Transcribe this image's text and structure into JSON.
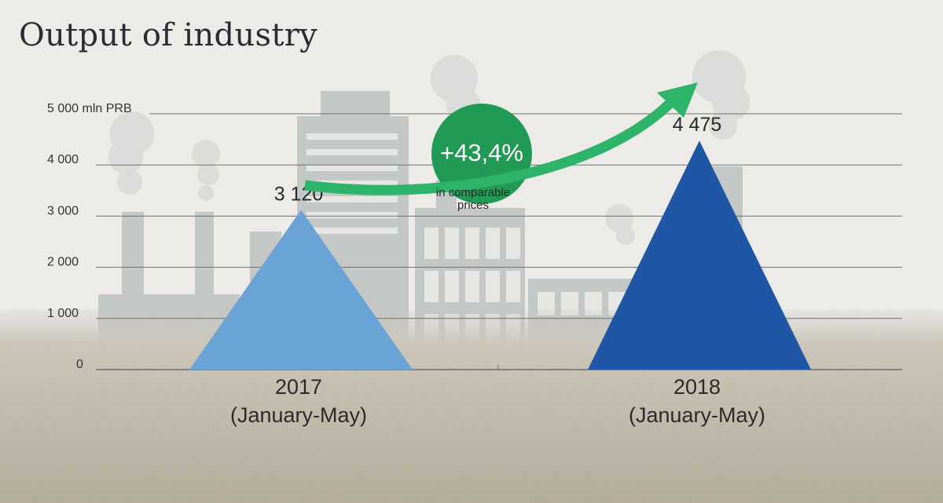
{
  "title": "Output of industry",
  "chart_data": {
    "type": "bar",
    "mark_shape": "triangle",
    "categories": [
      "2017\n(January-May)",
      "2018\n(January-May)"
    ],
    "values": [
      3120,
      4475
    ],
    "value_labels": [
      "3 120",
      "4 475"
    ],
    "y_ticks": [
      {
        "value": 0,
        "label": "0"
      },
      {
        "value": 1000,
        "label": "1 000"
      },
      {
        "value": 2000,
        "label": "2 000"
      },
      {
        "value": 3000,
        "label": "3 000"
      },
      {
        "value": 4000,
        "label": "4 000"
      },
      {
        "value": 5000,
        "label": "5 000 mln PRB"
      }
    ],
    "ylim": [
      0,
      5000
    ],
    "grid": true,
    "annotation": {
      "value": "+43,4%",
      "note": "in comparable\nprices"
    },
    "colors": {
      "2017": "#6aa3d5",
      "2018": "#1f56a6",
      "growth": "#2db36a",
      "badge": "#219a55",
      "grid": "#6f6f6f"
    }
  }
}
